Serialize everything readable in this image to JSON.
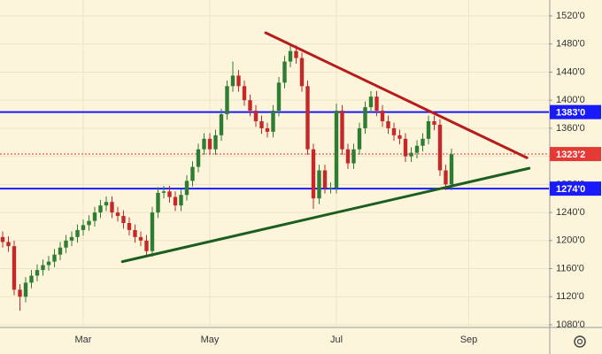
{
  "chart_data": {
    "type": "candlestick",
    "categories": [
      null,
      null,
      null,
      null,
      null,
      null,
      null,
      null,
      null,
      null,
      null,
      null,
      null,
      null,
      "Mar",
      null,
      null,
      null,
      null,
      null,
      null,
      null,
      null,
      null,
      null,
      null,
      null,
      null,
      null,
      null,
      null,
      null,
      null,
      null,
      null,
      null,
      "May",
      null,
      null,
      null,
      null,
      null,
      null,
      null,
      null,
      null,
      null,
      null,
      null,
      null,
      null,
      null,
      null,
      null,
      null,
      null,
      null,
      null,
      "Jul",
      null,
      null,
      null,
      null,
      null,
      null,
      null,
      null,
      null,
      null,
      null,
      null,
      null,
      null,
      null,
      null,
      null,
      null,
      null,
      null,
      null,
      null,
      "Sep"
    ],
    "open": [
      1205,
      1198,
      1192,
      1130,
      1120,
      1140,
      1150,
      1158,
      1165,
      1170,
      1180,
      1190,
      1200,
      1205,
      1215,
      1222,
      1228,
      1240,
      1250,
      1255,
      1240,
      1235,
      1225,
      1215,
      1205,
      1200,
      1185,
      1240,
      1268,
      1270,
      1262,
      1250,
      1265,
      1285,
      1305,
      1330,
      1345,
      1330,
      1350,
      1380,
      1420,
      1435,
      1420,
      1400,
      1385,
      1370,
      1360,
      1355,
      1385,
      1425,
      1455,
      1470,
      1460,
      1420,
      1330,
      1260,
      1300,
      1275,
      1275,
      1385,
      1330,
      1310,
      1330,
      1360,
      1390,
      1405,
      1385,
      1370,
      1360,
      1350,
      1345,
      1320,
      1325,
      1335,
      1345,
      1370,
      1365,
      1300,
      1280,
      null,
      null,
      null
    ],
    "high": [
      1213,
      1206,
      1200,
      1138,
      1148,
      1158,
      1166,
      1173,
      1178,
      1188,
      1198,
      1208,
      1213,
      1223,
      1230,
      1236,
      1248,
      1258,
      1263,
      1263,
      1248,
      1243,
      1233,
      1223,
      1213,
      1208,
      1248,
      1276,
      1278,
      1278,
      1270,
      1273,
      1293,
      1313,
      1338,
      1353,
      1353,
      1358,
      1388,
      1428,
      1455,
      1443,
      1428,
      1408,
      1393,
      1378,
      1368,
      1393,
      1433,
      1463,
      1480,
      1478,
      1468,
      1428,
      1338,
      1308,
      1308,
      1283,
      1395,
      1393,
      1338,
      1338,
      1368,
      1398,
      1413,
      1413,
      1393,
      1378,
      1368,
      1358,
      1353,
      1333,
      1343,
      1353,
      1378,
      1378,
      1373,
      1308,
      1331,
      null,
      null,
      null
    ],
    "low": [
      1190,
      1184,
      1122,
      1100,
      1112,
      1132,
      1142,
      1150,
      1157,
      1162,
      1172,
      1182,
      1192,
      1197,
      1207,
      1214,
      1220,
      1232,
      1242,
      1232,
      1227,
      1217,
      1207,
      1197,
      1192,
      1177,
      1177,
      1232,
      1260,
      1254,
      1242,
      1242,
      1257,
      1277,
      1297,
      1322,
      1322,
      1322,
      1342,
      1372,
      1412,
      1412,
      1392,
      1377,
      1362,
      1352,
      1347,
      1347,
      1377,
      1417,
      1447,
      1452,
      1412,
      1322,
      1245,
      1252,
      1267,
      1267,
      1267,
      1322,
      1302,
      1302,
      1322,
      1352,
      1382,
      1377,
      1362,
      1352,
      1342,
      1337,
      1312,
      1312,
      1317,
      1327,
      1337,
      1357,
      1292,
      1272,
      1272,
      null,
      null,
      null
    ],
    "close": [
      1198,
      1192,
      1130,
      1120,
      1140,
      1150,
      1158,
      1165,
      1170,
      1180,
      1190,
      1200,
      1205,
      1215,
      1222,
      1228,
      1240,
      1250,
      1255,
      1240,
      1235,
      1225,
      1215,
      1205,
      1200,
      1185,
      1240,
      1268,
      1270,
      1262,
      1250,
      1265,
      1285,
      1305,
      1330,
      1345,
      1330,
      1350,
      1380,
      1420,
      1435,
      1420,
      1400,
      1385,
      1370,
      1360,
      1355,
      1385,
      1425,
      1455,
      1470,
      1460,
      1420,
      1330,
      1260,
      1300,
      1275,
      1275,
      1385,
      1330,
      1310,
      1330,
      1360,
      1390,
      1405,
      1385,
      1370,
      1360,
      1350,
      1345,
      1320,
      1325,
      1335,
      1345,
      1370,
      1365,
      1300,
      1280,
      1323,
      null,
      null,
      null
    ],
    "up_color": "#2f7d32",
    "down_color": "#c62828",
    "ylim": [
      1080,
      1520
    ],
    "yticks": [
      {
        "value": 1080,
        "label": "1080'0"
      },
      {
        "value": 1120,
        "label": "1120'0"
      },
      {
        "value": 1160,
        "label": "1160'0"
      },
      {
        "value": 1200,
        "label": "1200'0"
      },
      {
        "value": 1240,
        "label": "1240'0"
      },
      {
        "value": 1280,
        "label": "1280'0"
      },
      {
        "value": 1320,
        "label": "1320'0"
      },
      {
        "value": 1360,
        "label": "1360'0"
      },
      {
        "value": 1400,
        "label": "1400'0"
      },
      {
        "value": 1440,
        "label": "1440'0"
      },
      {
        "value": 1480,
        "label": "1480'0"
      },
      {
        "value": 1520,
        "label": "1520'0"
      }
    ],
    "grid": true,
    "levels": [
      {
        "value": 1383,
        "label": "1383'0",
        "color": "#1a1aff",
        "style": "solid"
      },
      {
        "value": 1274,
        "label": "1274'0",
        "color": "#1a1aff",
        "style": "solid"
      },
      {
        "value": 1323.25,
        "label": "1323'2",
        "color": "#e53935",
        "style": "dotted"
      }
    ],
    "trendlines": [
      {
        "color": "#b71c1c",
        "start": [
          45.7,
          1496
        ],
        "end": [
          91.1,
          1318
        ]
      },
      {
        "color": "#1b5e20",
        "start": [
          20.8,
          1170
        ],
        "end": [
          91.5,
          1303
        ]
      }
    ]
  }
}
